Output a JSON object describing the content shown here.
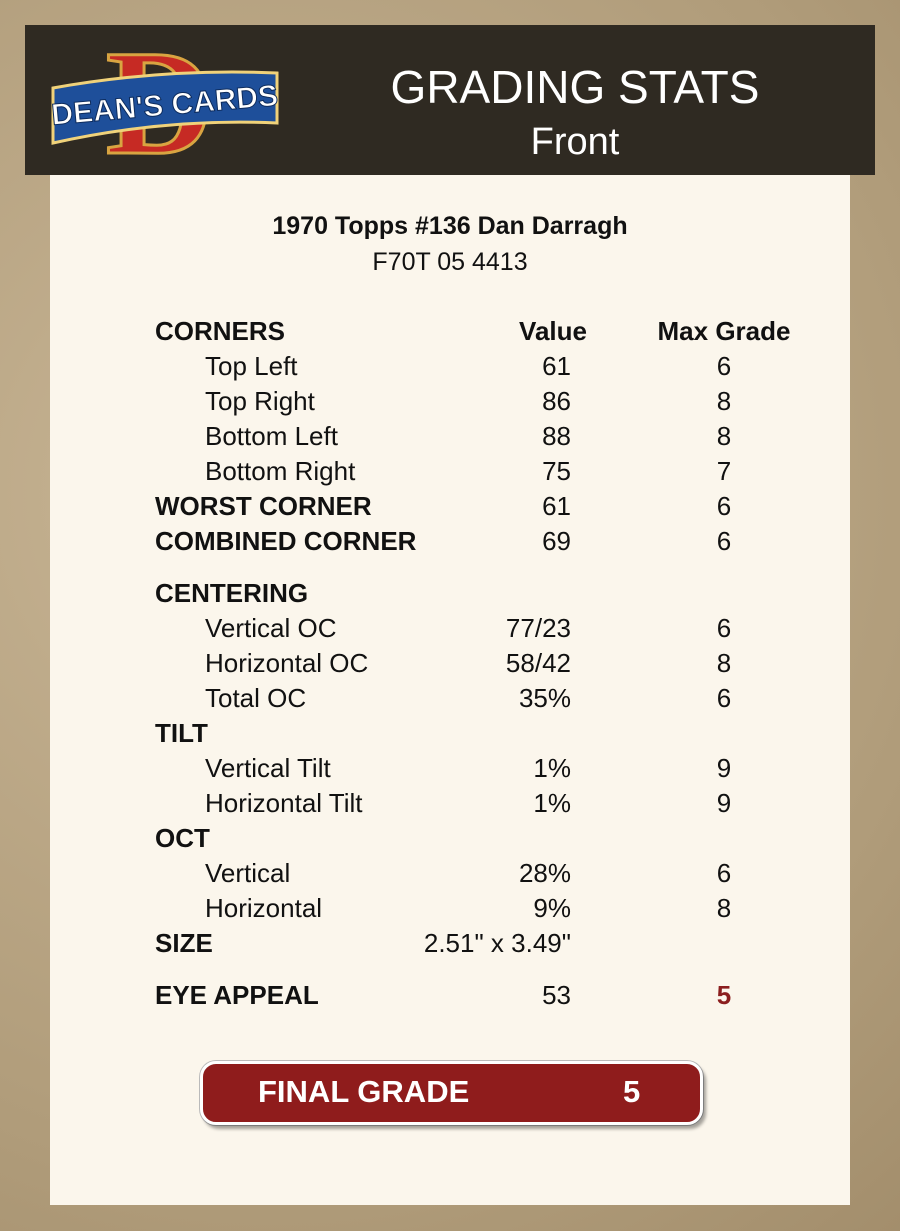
{
  "logo": {
    "letter": "D",
    "text": "DEAN'S CARDS"
  },
  "header": {
    "title": "GRADING STATS",
    "subtitle": "Front"
  },
  "card": {
    "name": "1970 Topps #136 Dan Darragh",
    "code": "F70T 05 4413"
  },
  "table": {
    "columns": [
      "Value",
      "Max Grade"
    ],
    "sections": [
      {
        "title": "CORNERS",
        "items": [
          {
            "label": "Top Left",
            "value": 61,
            "grade": 6
          },
          {
            "label": "Top Right",
            "value": 86,
            "grade": 8
          },
          {
            "label": "Bottom Left",
            "value": 88,
            "grade": 8
          },
          {
            "label": "Bottom Right",
            "value": 75,
            "grade": 7
          }
        ]
      },
      {
        "title": "WORST CORNER",
        "value": 61,
        "grade": 6
      },
      {
        "title": "COMBINED CORNER",
        "value": 69,
        "grade": 6
      },
      {
        "title": "CENTERING",
        "items": [
          {
            "label": "Vertical OC",
            "value": "77/23",
            "grade": 6
          },
          {
            "label": "Horizontal OC",
            "value": "58/42",
            "grade": 8
          },
          {
            "label": "Total OC",
            "value": "35%",
            "grade": 6
          }
        ]
      },
      {
        "title": "TILT",
        "items": [
          {
            "label": "Vertical Tilt",
            "value": "1%",
            "grade": 9
          },
          {
            "label": "Horizontal Tilt",
            "value": "1%",
            "grade": 9
          }
        ]
      },
      {
        "title": "OCT",
        "items": [
          {
            "label": "Vertical",
            "value": "28%",
            "grade": 6
          },
          {
            "label": "Horizontal",
            "value": "9%",
            "grade": 8
          }
        ]
      },
      {
        "title": "SIZE",
        "value": "2.51\" x 3.49\""
      },
      {
        "title": "EYE APPEAL",
        "value": 53,
        "grade": 5,
        "grade_color": "#8b1e1e"
      }
    ]
  },
  "final": {
    "label": "FINAL GRADE",
    "grade": 5
  }
}
